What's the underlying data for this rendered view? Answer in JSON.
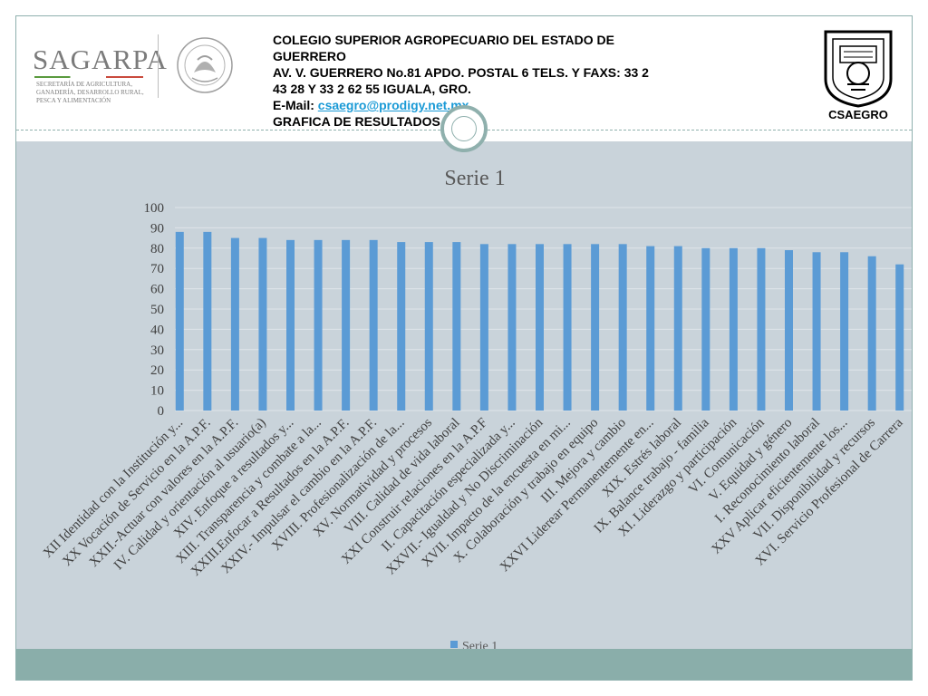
{
  "header": {
    "line1": "COLEGIO SUPERIOR AGROPECUARIO DEL ESTADO DE",
    "line2": "GUERRERO",
    "line3": "AV. V. GUERRERO No.81      APDO. POSTAL  6      TELS. Y FAXS: 33 2",
    "line4": "43 28 Y 33 2 62 55      IGUALA, GRO.",
    "email_label": "E-Mail:  ",
    "email": "csaegro@prodigy.net.mx",
    "line6": "GRAFICA DE RESULTADOS"
  },
  "logos": {
    "sagarpa": "SAGARPA",
    "sagarpa_sub": "SECRETARÍA DE AGRICULTURA, GANADERÍA, DESARROLLO RURAL, PESCA Y ALIMENTACIÓN",
    "seal_text": "ESTADOS UNIDOS MEXICANOS",
    "csaegro": "CSAEGRO"
  },
  "colors": {
    "bar": "#5b9bd5",
    "chart_bg": "#c9d3da",
    "band": "#8aaeaa",
    "grid": "#dfe5ea"
  },
  "chart_data": {
    "type": "bar",
    "title": "Serie 1",
    "ylim": [
      0,
      100
    ],
    "yticks": [
      0,
      10,
      20,
      30,
      40,
      50,
      60,
      70,
      80,
      90,
      100
    ],
    "grid": true,
    "legend_position": "bottom",
    "categories": [
      "XII Identidad con la Institución y...",
      "XX Vocación de Servicio en la A.P.F.",
      "XXII.-Actuar con valores en la A.P.F.",
      "IV. Calidad y orientación al usuario(a)",
      "XIV. Enfoque a resultados y...",
      "XIII. Transparencia y combate a la...",
      "XXIII.Enfocar a Resultados en la A.P.F.",
      "XXIV.- Impulsar el cambio en la A.P.F.",
      "XVIII. Profesionalización de la...",
      "XV. Normatividad y procesos",
      "VIII. Calidad de vida laboral",
      "XXI Construir relaciones en la A.P.F",
      "II. Capacitación especializada y...",
      "XXVII.- Igualdad y No Discriminación",
      "XVII. Impacto de la encuesta en mi...",
      "X. Colaboración y trabajo en equipo",
      "III. Mejora y cambio",
      "XXVI Liderear Permanentemente en...",
      "XIX. Estrés laboral",
      "IX. Balance trabajo - familia",
      "XI. Liderazgo y participación",
      "VI. Comunicación",
      "V. Equidad y género",
      "I. Reconocimiento laboral",
      "XXV  Aplicar eficientemente los...",
      "VII. Disponibilidad y recursos",
      "XVI. Servicio Profesional de Carrera"
    ],
    "series": [
      {
        "name": "Serie 1",
        "values": [
          88,
          88,
          85,
          85,
          84,
          84,
          84,
          84,
          83,
          83,
          83,
          82,
          82,
          82,
          82,
          82,
          82,
          81,
          81,
          80,
          80,
          80,
          79,
          78,
          78,
          76,
          72
        ]
      }
    ]
  }
}
